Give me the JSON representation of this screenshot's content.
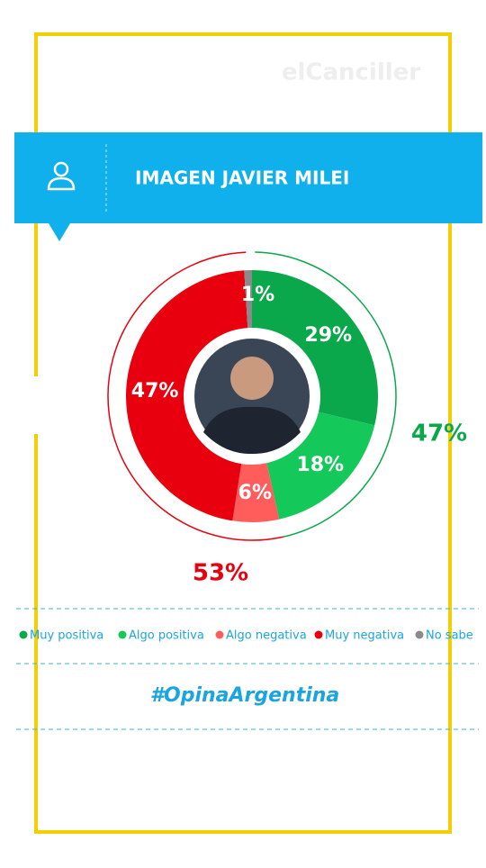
{
  "chart_data": {
    "type": "pie",
    "title": "IMAGEN JAVIER MILEI",
    "watermark": "elCanciller",
    "categories": [
      "Muy positiva",
      "Algo positiva",
      "Algo negativa",
      "Muy negativa",
      "No sabe"
    ],
    "values": [
      29,
      18,
      6,
      47,
      1
    ],
    "value_labels": [
      "29%",
      "18%",
      "6%",
      "47%",
      "1%"
    ],
    "colors": [
      "#0aa84a",
      "#14c95a",
      "#ff5c5c",
      "#e8000e",
      "#8a8a8a"
    ],
    "annotations": [
      "47%",
      "53%"
    ],
    "brand": "#OpinaArgentina"
  }
}
